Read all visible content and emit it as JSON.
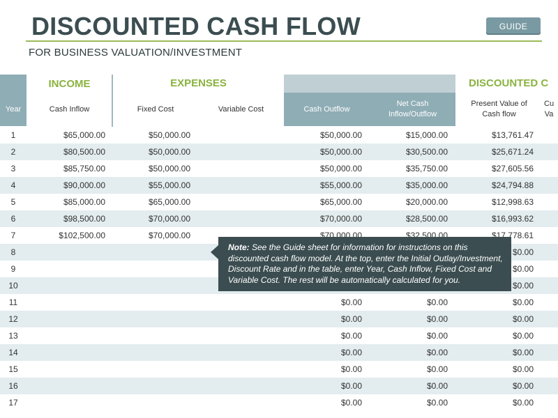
{
  "header": {
    "title": "DISCOUNTED CASH FLOW",
    "subtitle": "FOR BUSINESS VALUATION/INVESTMENT",
    "guide_button": "GUIDE"
  },
  "table": {
    "groups": {
      "income": "INCOME",
      "expenses": "EXPENSES",
      "discounted": "DISCOUNTED C"
    },
    "columns": {
      "year": "Year",
      "cash_inflow": "Cash Inflow",
      "fixed_cost": "Fixed Cost",
      "variable_cost": "Variable Cost",
      "cash_outflow": "Cash Outflow",
      "net_cash": "Net Cash\nInflow/Outflow",
      "pv_cash_flow": "Present Value of\nCash flow",
      "cu_partial": "Cu\nVa"
    },
    "rows": [
      {
        "year": "1",
        "cash_inflow": "$65,000.00",
        "fixed_cost": "$50,000.00",
        "variable_cost": "",
        "cash_outflow": "$50,000.00",
        "net": "$15,000.00",
        "pv": "$13,761.47"
      },
      {
        "year": "2",
        "cash_inflow": "$80,500.00",
        "fixed_cost": "$50,000.00",
        "variable_cost": "",
        "cash_outflow": "$50,000.00",
        "net": "$30,500.00",
        "pv": "$25,671.24"
      },
      {
        "year": "3",
        "cash_inflow": "$85,750.00",
        "fixed_cost": "$50,000.00",
        "variable_cost": "",
        "cash_outflow": "$50,000.00",
        "net": "$35,750.00",
        "pv": "$27,605.56"
      },
      {
        "year": "4",
        "cash_inflow": "$90,000.00",
        "fixed_cost": "$55,000.00",
        "variable_cost": "",
        "cash_outflow": "$55,000.00",
        "net": "$35,000.00",
        "pv": "$24,794.88"
      },
      {
        "year": "5",
        "cash_inflow": "$85,000.00",
        "fixed_cost": "$65,000.00",
        "variable_cost": "",
        "cash_outflow": "$65,000.00",
        "net": "$20,000.00",
        "pv": "$12,998.63"
      },
      {
        "year": "6",
        "cash_inflow": "$98,500.00",
        "fixed_cost": "$70,000.00",
        "variable_cost": "",
        "cash_outflow": "$70,000.00",
        "net": "$28,500.00",
        "pv": "$16,993.62"
      },
      {
        "year": "7",
        "cash_inflow": "$102,500.00",
        "fixed_cost": "$70,000.00",
        "variable_cost": "",
        "cash_outflow": "$70,000.00",
        "net": "$32,500.00",
        "pv": "$17,778.61"
      },
      {
        "year": "8",
        "cash_inflow": "",
        "fixed_cost": "",
        "variable_cost": "",
        "cash_outflow": "",
        "net": "",
        "pv": "$0.00"
      },
      {
        "year": "9",
        "cash_inflow": "",
        "fixed_cost": "",
        "variable_cost": "",
        "cash_outflow": "",
        "net": "",
        "pv": "$0.00"
      },
      {
        "year": "10",
        "cash_inflow": "",
        "fixed_cost": "",
        "variable_cost": "",
        "cash_outflow": "",
        "net": "",
        "pv": "$0.00"
      },
      {
        "year": "11",
        "cash_inflow": "",
        "fixed_cost": "",
        "variable_cost": "",
        "cash_outflow": "$0.00",
        "net": "$0.00",
        "pv": "$0.00"
      },
      {
        "year": "12",
        "cash_inflow": "",
        "fixed_cost": "",
        "variable_cost": "",
        "cash_outflow": "$0.00",
        "net": "$0.00",
        "pv": "$0.00"
      },
      {
        "year": "13",
        "cash_inflow": "",
        "fixed_cost": "",
        "variable_cost": "",
        "cash_outflow": "$0.00",
        "net": "$0.00",
        "pv": "$0.00"
      },
      {
        "year": "14",
        "cash_inflow": "",
        "fixed_cost": "",
        "variable_cost": "",
        "cash_outflow": "$0.00",
        "net": "$0.00",
        "pv": "$0.00"
      },
      {
        "year": "15",
        "cash_inflow": "",
        "fixed_cost": "",
        "variable_cost": "",
        "cash_outflow": "$0.00",
        "net": "$0.00",
        "pv": "$0.00"
      },
      {
        "year": "16",
        "cash_inflow": "",
        "fixed_cost": "",
        "variable_cost": "",
        "cash_outflow": "$0.00",
        "net": "$0.00",
        "pv": "$0.00"
      },
      {
        "year": "17",
        "cash_inflow": "",
        "fixed_cost": "",
        "variable_cost": "",
        "cash_outflow": "$0.00",
        "net": "$0.00",
        "pv": "$0.00"
      }
    ]
  },
  "note": {
    "label": "Note:",
    "text": " See the Guide sheet for information for instructions on this discounted cash flow model. At the top, enter the Initial Outlay/Investment, Discount Rate and in the table, enter Year, Cash Inflow, Fixed Cost and Variable Cost. The rest will be automatically calculated for you."
  },
  "colors": {
    "accent_green": "#8ab33f",
    "header_teal": "#8fadb5",
    "note_bg": "#3b4d50",
    "row_alt": "#e3ecee"
  }
}
